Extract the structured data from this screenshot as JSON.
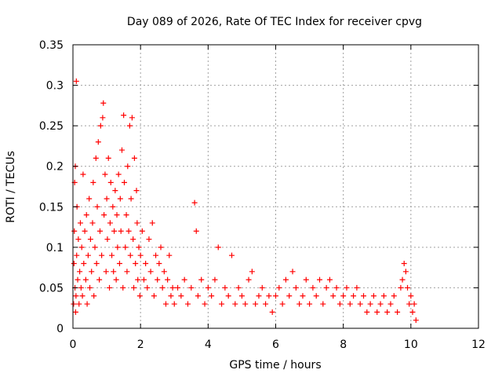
{
  "chart_data": {
    "type": "scatter",
    "title": "Day 089 of 2026, Rate Of TEC Index for receiver cpvg",
    "xlabel": "GPS time / hours",
    "ylabel": "ROTI / TECUs",
    "xlim": [
      0,
      12
    ],
    "ylim": [
      0,
      0.35
    ],
    "x_ticks": [
      0,
      2,
      4,
      6,
      8,
      10,
      12
    ],
    "x_tick_labels": [
      "0",
      "2",
      "4",
      "6",
      "8",
      "10",
      "12"
    ],
    "y_ticks": [
      0,
      0.05,
      0.1,
      0.15,
      0.2,
      0.25,
      0.3,
      0.35
    ],
    "y_tick_labels": [
      "0",
      "0.05",
      "0.1",
      "0.15",
      "0.2",
      "0.25",
      "0.3",
      "0.35"
    ],
    "grid": true,
    "marker": "+",
    "color": "#ff0000",
    "series": [
      {
        "name": "ROTI",
        "points": [
          [
            0.02,
            0.03
          ],
          [
            0.03,
            0.08
          ],
          [
            0.04,
            0.12
          ],
          [
            0.05,
            0.18
          ],
          [
            0.06,
            0.05
          ],
          [
            0.07,
            0.2
          ],
          [
            0.08,
            0.02
          ],
          [
            0.09,
            0.04
          ],
          [
            0.1,
            0.305
          ],
          [
            0.11,
            0.09
          ],
          [
            0.12,
            0.15
          ],
          [
            0.14,
            0.06
          ],
          [
            0.16,
            0.11
          ],
          [
            0.18,
            0.03
          ],
          [
            0.2,
            0.07
          ],
          [
            0.22,
            0.13
          ],
          [
            0.24,
            0.05
          ],
          [
            0.26,
            0.1
          ],
          [
            0.28,
            0.04
          ],
          [
            0.3,
            0.19
          ],
          [
            0.32,
            0.08
          ],
          [
            0.35,
            0.12
          ],
          [
            0.38,
            0.06
          ],
          [
            0.4,
            0.14
          ],
          [
            0.42,
            0.03
          ],
          [
            0.45,
            0.09
          ],
          [
            0.48,
            0.16
          ],
          [
            0.5,
            0.05
          ],
          [
            0.52,
            0.11
          ],
          [
            0.55,
            0.07
          ],
          [
            0.58,
            0.13
          ],
          [
            0.6,
            0.18
          ],
          [
            0.62,
            0.04
          ],
          [
            0.65,
            0.1
          ],
          [
            0.68,
            0.21
          ],
          [
            0.7,
            0.08
          ],
          [
            0.72,
            0.15
          ],
          [
            0.75,
            0.23
          ],
          [
            0.78,
            0.06
          ],
          [
            0.8,
            0.12
          ],
          [
            0.82,
            0.25
          ],
          [
            0.85,
            0.09
          ],
          [
            0.88,
            0.26
          ],
          [
            0.9,
            0.278
          ],
          [
            0.92,
            0.14
          ],
          [
            0.95,
            0.19
          ],
          [
            0.98,
            0.07
          ],
          [
            1.0,
            0.16
          ],
          [
            1.02,
            0.11
          ],
          [
            1.05,
            0.21
          ],
          [
            1.08,
            0.05
          ],
          [
            1.1,
            0.13
          ],
          [
            1.12,
            0.18
          ],
          [
            1.15,
            0.09
          ],
          [
            1.18,
            0.15
          ],
          [
            1.2,
            0.07
          ],
          [
            1.22,
            0.12
          ],
          [
            1.25,
            0.17
          ],
          [
            1.28,
            0.06
          ],
          [
            1.3,
            0.14
          ],
          [
            1.32,
            0.1
          ],
          [
            1.35,
            0.19
          ],
          [
            1.38,
            0.08
          ],
          [
            1.4,
            0.16
          ],
          [
            1.42,
            0.12
          ],
          [
            1.45,
            0.22
          ],
          [
            1.48,
            0.05
          ],
          [
            1.5,
            0.263
          ],
          [
            1.52,
            0.18
          ],
          [
            1.55,
            0.1
          ],
          [
            1.58,
            0.14
          ],
          [
            1.6,
            0.07
          ],
          [
            1.62,
            0.2
          ],
          [
            1.65,
            0.12
          ],
          [
            1.68,
            0.25
          ],
          [
            1.7,
            0.09
          ],
          [
            1.72,
            0.16
          ],
          [
            1.75,
            0.26
          ],
          [
            1.78,
            0.11
          ],
          [
            1.8,
            0.05
          ],
          [
            1.82,
            0.21
          ],
          [
            1.85,
            0.08
          ],
          [
            1.88,
            0.17
          ],
          [
            1.9,
            0.13
          ],
          [
            1.92,
            0.06
          ],
          [
            1.95,
            0.1
          ],
          [
            1.98,
            0.04
          ],
          [
            2.0,
            0.09
          ],
          [
            2.05,
            0.12
          ],
          [
            2.1,
            0.06
          ],
          [
            2.15,
            0.08
          ],
          [
            2.2,
            0.05
          ],
          [
            2.25,
            0.11
          ],
          [
            2.3,
            0.07
          ],
          [
            2.35,
            0.13
          ],
          [
            2.4,
            0.04
          ],
          [
            2.45,
            0.09
          ],
          [
            2.5,
            0.06
          ],
          [
            2.55,
            0.08
          ],
          [
            2.6,
            0.1
          ],
          [
            2.65,
            0.05
          ],
          [
            2.7,
            0.07
          ],
          [
            2.75,
            0.03
          ],
          [
            2.8,
            0.06
          ],
          [
            2.85,
            0.09
          ],
          [
            2.9,
            0.04
          ],
          [
            2.95,
            0.05
          ],
          [
            3.0,
            0.03
          ],
          [
            3.1,
            0.05
          ],
          [
            3.2,
            0.04
          ],
          [
            3.3,
            0.06
          ],
          [
            3.4,
            0.03
          ],
          [
            3.5,
            0.05
          ],
          [
            3.6,
            0.155
          ],
          [
            3.65,
            0.12
          ],
          [
            3.7,
            0.04
          ],
          [
            3.8,
            0.06
          ],
          [
            3.9,
            0.03
          ],
          [
            4.0,
            0.05
          ],
          [
            4.1,
            0.04
          ],
          [
            4.2,
            0.06
          ],
          [
            4.3,
            0.1
          ],
          [
            4.4,
            0.03
          ],
          [
            4.5,
            0.05
          ],
          [
            4.6,
            0.04
          ],
          [
            4.7,
            0.09
          ],
          [
            4.8,
            0.03
          ],
          [
            4.9,
            0.05
          ],
          [
            5.0,
            0.04
          ],
          [
            5.1,
            0.03
          ],
          [
            5.2,
            0.06
          ],
          [
            5.3,
            0.07
          ],
          [
            5.4,
            0.03
          ],
          [
            5.5,
            0.04
          ],
          [
            5.6,
            0.05
          ],
          [
            5.7,
            0.03
          ],
          [
            5.8,
            0.04
          ],
          [
            5.9,
            0.02
          ],
          [
            6.0,
            0.04
          ],
          [
            6.1,
            0.05
          ],
          [
            6.2,
            0.03
          ],
          [
            6.3,
            0.06
          ],
          [
            6.4,
            0.04
          ],
          [
            6.5,
            0.07
          ],
          [
            6.6,
            0.05
          ],
          [
            6.7,
            0.03
          ],
          [
            6.8,
            0.04
          ],
          [
            6.9,
            0.06
          ],
          [
            7.0,
            0.03
          ],
          [
            7.1,
            0.05
          ],
          [
            7.2,
            0.04
          ],
          [
            7.3,
            0.06
          ],
          [
            7.4,
            0.03
          ],
          [
            7.5,
            0.05
          ],
          [
            7.6,
            0.06
          ],
          [
            7.7,
            0.04
          ],
          [
            7.8,
            0.05
          ],
          [
            7.9,
            0.03
          ],
          [
            8.0,
            0.04
          ],
          [
            8.1,
            0.05
          ],
          [
            8.2,
            0.03
          ],
          [
            8.3,
            0.04
          ],
          [
            8.4,
            0.05
          ],
          [
            8.5,
            0.03
          ],
          [
            8.6,
            0.04
          ],
          [
            8.7,
            0.02
          ],
          [
            8.8,
            0.03
          ],
          [
            8.9,
            0.04
          ],
          [
            9.0,
            0.02
          ],
          [
            9.1,
            0.03
          ],
          [
            9.2,
            0.04
          ],
          [
            9.3,
            0.02
          ],
          [
            9.4,
            0.03
          ],
          [
            9.5,
            0.04
          ],
          [
            9.6,
            0.02
          ],
          [
            9.7,
            0.05
          ],
          [
            9.75,
            0.06
          ],
          [
            9.8,
            0.08
          ],
          [
            9.85,
            0.07
          ],
          [
            9.9,
            0.05
          ],
          [
            9.95,
            0.03
          ],
          [
            10.0,
            0.04
          ],
          [
            10.05,
            0.02
          ],
          [
            10.1,
            0.03
          ],
          [
            10.15,
            0.01
          ]
        ]
      }
    ]
  }
}
